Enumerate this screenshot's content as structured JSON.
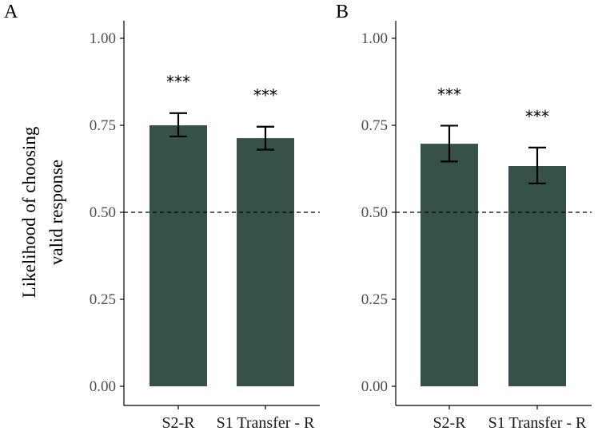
{
  "y_axis_label_line1": "Likelihood of choosing",
  "y_axis_label_line2": "valid response",
  "colors": {
    "bar": "#36514a",
    "axis": "#000000",
    "reference_line": "#000000"
  },
  "chart_data": [
    {
      "type": "bar",
      "panel_label": "A",
      "categories": [
        "S2-R",
        "S1 Transfer - R"
      ],
      "values": [
        0.75,
        0.713
      ],
      "error_lower": [
        0.718,
        0.68
      ],
      "error_upper": [
        0.785,
        0.746
      ],
      "significance": [
        "***",
        "***"
      ],
      "reference_line": 0.5,
      "ylim": [
        0,
        1
      ],
      "yticks": [
        "0.00",
        "0.25",
        "0.50",
        "0.75",
        "1.00"
      ],
      "xlabel": "",
      "ylabel": "Likelihood of choosing valid response"
    },
    {
      "type": "bar",
      "panel_label": "B",
      "categories": [
        "S2-R",
        "S1 Transfer - R"
      ],
      "values": [
        0.697,
        0.633
      ],
      "error_lower": [
        0.646,
        0.583
      ],
      "error_upper": [
        0.749,
        0.686
      ],
      "significance": [
        "***",
        "***"
      ],
      "reference_line": 0.5,
      "ylim": [
        0,
        1
      ],
      "yticks": [
        "0.00",
        "0.25",
        "0.50",
        "0.75",
        "1.00"
      ],
      "xlabel": "",
      "ylabel": ""
    }
  ]
}
